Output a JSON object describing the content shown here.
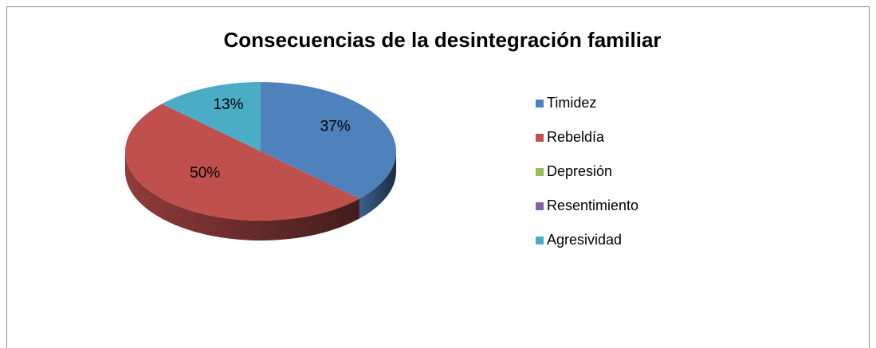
{
  "chart_data": {
    "type": "pie",
    "title": "Consecuencias de la desintegración familiar",
    "categories": [
      "Timidez",
      "Rebeldía",
      "Depresión",
      "Resentimiento",
      "Agresividad"
    ],
    "values": [
      37,
      50,
      0,
      0,
      13
    ],
    "value_labels": [
      "37%",
      "50%",
      null,
      null,
      "13%"
    ],
    "colors": [
      "#4f81bd",
      "#c0504d",
      "#9bbb59",
      "#8064a2",
      "#4bacc6"
    ],
    "legend": "right"
  }
}
